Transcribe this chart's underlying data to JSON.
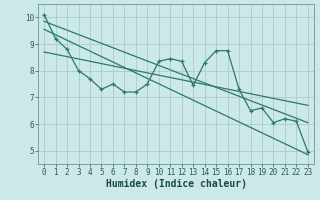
{
  "xlabel": "Humidex (Indice chaleur)",
  "bg_color": "#cce8e8",
  "grid_color": "#aacccc",
  "line_color": "#2a7a6a",
  "xlim": [
    -0.5,
    23.5
  ],
  "ylim": [
    4.5,
    10.5
  ],
  "xticks": [
    0,
    1,
    2,
    3,
    4,
    5,
    6,
    7,
    8,
    9,
    10,
    11,
    12,
    13,
    14,
    15,
    16,
    17,
    18,
    19,
    20,
    21,
    22,
    23
  ],
  "yticks": [
    5,
    6,
    7,
    8,
    9,
    10
  ],
  "data_line_y": [
    10.1,
    9.2,
    8.8,
    8.0,
    7.7,
    7.3,
    7.5,
    7.2,
    7.2,
    7.5,
    8.35,
    8.45,
    8.35,
    7.45,
    8.3,
    8.75,
    8.75,
    7.3,
    6.5,
    6.6,
    6.05,
    6.2,
    6.1,
    4.95
  ],
  "trend1_x": [
    0,
    23
  ],
  "trend1_y": [
    9.85,
    6.05
  ],
  "trend2_x": [
    0,
    23
  ],
  "trend2_y": [
    9.55,
    4.85
  ],
  "trend3_x": [
    0,
    23
  ],
  "trend3_y": [
    8.7,
    6.7
  ],
  "tick_fontsize": 5.5,
  "xlabel_fontsize": 7
}
